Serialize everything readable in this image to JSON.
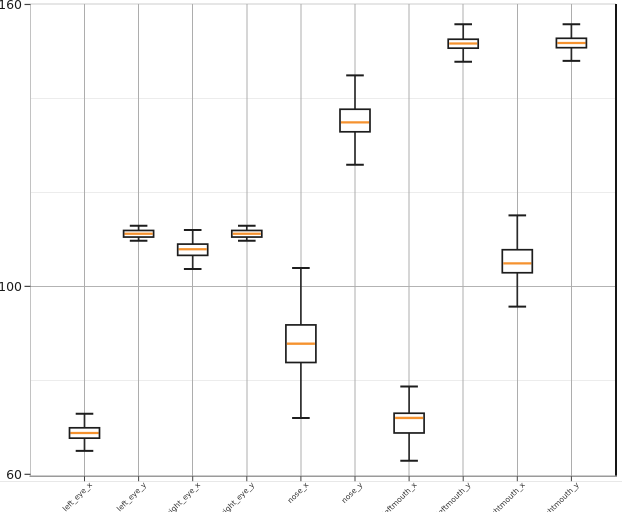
{
  "figure": {
    "background": "#ffffff",
    "title": ""
  },
  "chart_data": {
    "type": "box",
    "title": "",
    "xlabel": "",
    "ylabel": "",
    "legend": "none",
    "grid": "both",
    "categories": [
      "left_eye_x",
      "left_eye_y",
      "right_eye_x",
      "right_eye_y",
      "nose_x",
      "nose_y",
      "leftmouth_x",
      "leftmouth_y",
      "rightmouth_x",
      "rightmouth_y"
    ],
    "boxes": [
      {
        "label": "left_eye_x",
        "whislo": 65.0,
        "q1": 67.7,
        "med": 68.8,
        "q3": 69.9,
        "whishi": 72.9
      },
      {
        "label": "left_eye_y",
        "whislo": 109.7,
        "q1": 110.5,
        "med": 111.2,
        "q3": 111.9,
        "whishi": 112.9
      },
      {
        "label": "right_eye_x",
        "whislo": 103.7,
        "q1": 106.6,
        "med": 107.9,
        "q3": 109.0,
        "whishi": 112.0
      },
      {
        "label": "right_eye_y",
        "whislo": 109.7,
        "q1": 110.5,
        "med": 111.2,
        "q3": 111.9,
        "whishi": 112.9
      },
      {
        "label": "nose_x",
        "whislo": 72.0,
        "q1": 83.8,
        "med": 87.8,
        "q3": 91.8,
        "whishi": 103.9
      },
      {
        "label": "nose_y",
        "whislo": 125.9,
        "q1": 132.9,
        "med": 134.9,
        "q3": 137.7,
        "whishi": 144.9
      },
      {
        "label": "leftmouth_x",
        "whislo": 62.9,
        "q1": 68.8,
        "med": 72.0,
        "q3": 73.0,
        "whishi": 78.7
      },
      {
        "label": "leftmouth_y",
        "whislo": 147.8,
        "q1": 150.7,
        "med": 151.7,
        "q3": 152.6,
        "whishi": 155.8
      },
      {
        "label": "rightmouth_x",
        "whislo": 95.7,
        "q1": 102.9,
        "med": 104.9,
        "q3": 107.8,
        "whishi": 115.1
      },
      {
        "label": "rightmouth_y",
        "whislo": 148.0,
        "q1": 150.8,
        "med": 151.8,
        "q3": 152.8,
        "whishi": 155.8
      }
    ],
    "ylim": [
      59.6,
      160.1
    ],
    "yticks_labeled": [
      160,
      100,
      60
    ],
    "ytick_label_texts": [
      "160",
      "100",
      "60"
    ],
    "y_gridline_values": {
      "top": 160,
      "major": [
        100
      ],
      "minor": [
        140,
        120,
        80
      ]
    },
    "colors": {
      "median": "#f5922f",
      "box_edge": "#1d1d1d",
      "whisker": "#2a2a2a",
      "cap": "#1d1d1d",
      "box_fill": "#ffffff",
      "grid_vertical": "#adadad",
      "grid_major_h": "#b3b3b3",
      "grid_minor_h": "#ececec",
      "top_spine": "#cccccc",
      "left_spine": "#c2c2c2",
      "right_spine": "#151515",
      "bottom_axis": "#9a9a9a",
      "sub_axis_line": "#e8e8e8",
      "tick_mark": "#444444",
      "y_tick_label_color": "#1a1a1a",
      "x_tick_label_color": "#333333"
    }
  }
}
